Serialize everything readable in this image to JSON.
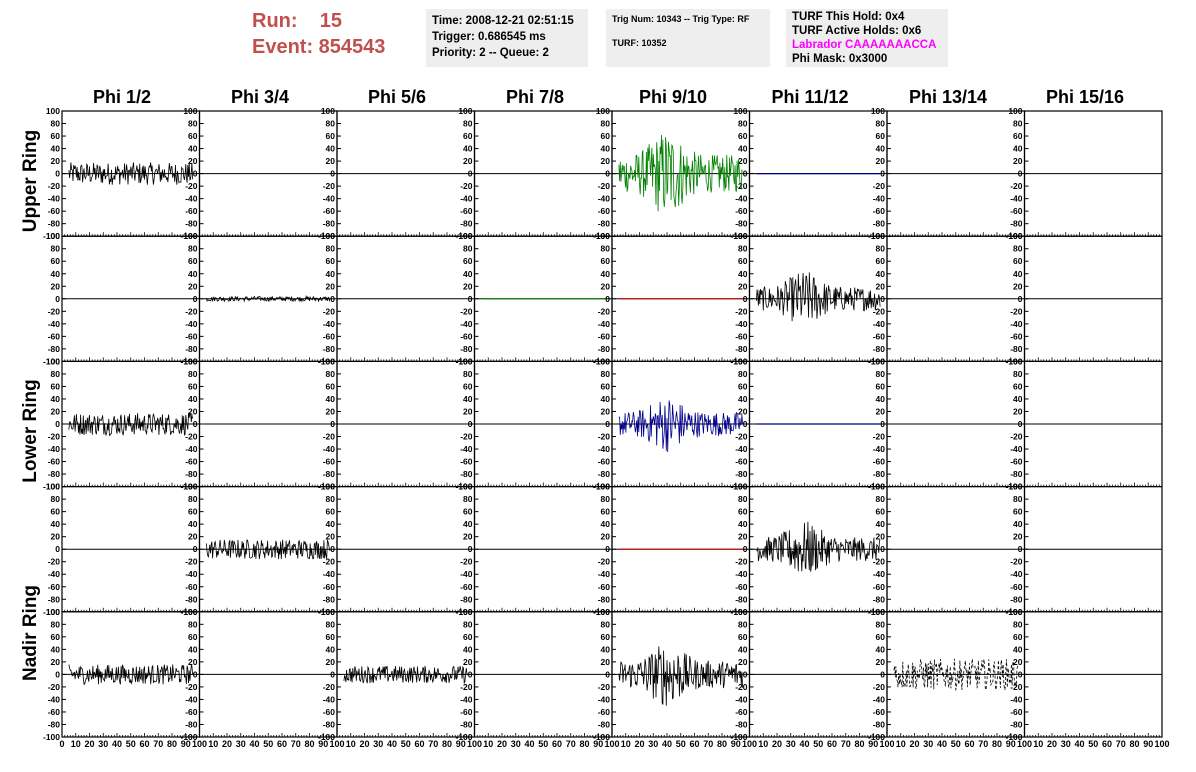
{
  "header": {
    "run_label": "Run:    15",
    "event_label": "Event: 854543"
  },
  "info_panel": {
    "time": "Time: 2008-12-21 02:51:15",
    "trigger": "Trigger: 0.686545 ms",
    "priority": "Priority: 2 -- Queue: 2"
  },
  "trig_panel": {
    "trig_num": "Trig Num: 10343 -- Trig Type: RF",
    "turf": "TURF: 10352"
  },
  "turf_panel": {
    "this_hold": "TURF This Hold: 0x4",
    "active_holds": "TURF Active Holds: 0x6",
    "labrador": "Labrador CAAAAAAACCA",
    "phi_mask": "Phi Mask: 0x3000"
  },
  "columns": [
    "Phi 1/2",
    "Phi 3/4",
    "Phi 5/6",
    "Phi 7/8",
    "Phi 9/10",
    "Phi 11/12",
    "Phi 13/14",
    "Phi 15/16"
  ],
  "rows": [
    "Upper Ring",
    "Lower Ring",
    "Nadir Ring"
  ],
  "chart_data": {
    "type": "line",
    "description_of_grid": "8 phi columns x 5 waveform rows (2 upper, 2 lower, 1 nadir)",
    "ylim": [
      -100,
      100
    ],
    "xlim": [
      0,
      100
    ],
    "y_ticks": [
      -100,
      -80,
      -60,
      -40,
      -20,
      0,
      20,
      40,
      60,
      80,
      100
    ],
    "x_ticks": [
      0,
      10,
      20,
      30,
      40,
      50,
      60,
      70,
      80,
      90,
      100
    ],
    "x_tick_labels_bottom": "0 10 20 30 40 50 60 70 80 90 100",
    "colors": {
      "black": "#000000",
      "green": "#008000",
      "blue": "#00008b",
      "red": "#cc0000"
    },
    "waveforms": [
      {
        "row": 0,
        "col": 0,
        "amp": 18,
        "color": "black",
        "dash": false
      },
      {
        "row": 0,
        "col": 4,
        "amp": 55,
        "color": "green",
        "dash": false
      },
      {
        "row": 0,
        "col": 5,
        "amp": 0,
        "color": "blue",
        "dash": false
      },
      {
        "row": 1,
        "col": 1,
        "amp": 4,
        "color": "black",
        "dash": false
      },
      {
        "row": 1,
        "col": 3,
        "amp": 0,
        "color": "green",
        "dash": false
      },
      {
        "row": 1,
        "col": 4,
        "amp": 0,
        "color": "red",
        "dash": false
      },
      {
        "row": 1,
        "col": 5,
        "amp": 35,
        "color": "black",
        "dash": false
      },
      {
        "row": 2,
        "col": 0,
        "amp": 18,
        "color": "black",
        "dash": false
      },
      {
        "row": 2,
        "col": 4,
        "amp": 35,
        "color": "blue",
        "dash": false
      },
      {
        "row": 2,
        "col": 5,
        "amp": 0,
        "color": "blue",
        "dash": false
      },
      {
        "row": 3,
        "col": 1,
        "amp": 16,
        "color": "black",
        "dash": false
      },
      {
        "row": 3,
        "col": 4,
        "amp": 0,
        "color": "red",
        "dash": false
      },
      {
        "row": 3,
        "col": 5,
        "amp": 35,
        "color": "black",
        "dash": false
      },
      {
        "row": 4,
        "col": 0,
        "amp": 16,
        "color": "black",
        "dash": false
      },
      {
        "row": 4,
        "col": 2,
        "amp": 14,
        "color": "black",
        "dash": false
      },
      {
        "row": 4,
        "col": 4,
        "amp": 40,
        "color": "black",
        "dash": false
      },
      {
        "row": 4,
        "col": 6,
        "amp": 25,
        "color": "black",
        "dash": true
      }
    ]
  }
}
